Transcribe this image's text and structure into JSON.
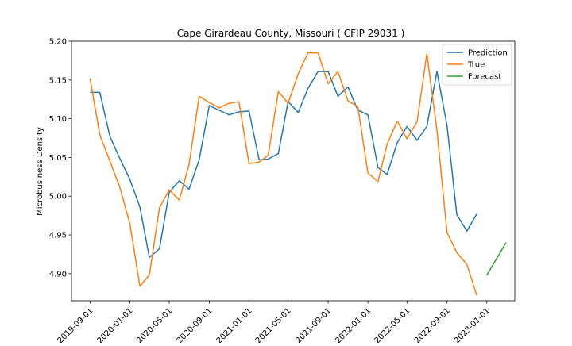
{
  "chart_data": {
    "type": "line",
    "title": "Cape Girardeau County, Missouri ( CFIP 29031 )",
    "xlabel": "",
    "ylabel": "Microbusiness Density",
    "xlim": [
      "2019-07-06",
      "2023-03-28"
    ],
    "ylim": [
      4.865,
      5.2
    ],
    "yticks": [
      4.9,
      4.95,
      5.0,
      5.05,
      5.1,
      5.15,
      5.2
    ],
    "xticks": [
      "2019-09-01",
      "2020-01-01",
      "2020-05-01",
      "2020-09-01",
      "2021-01-01",
      "2021-05-01",
      "2021-09-01",
      "2022-01-01",
      "2022-05-01",
      "2022-09-01",
      "2023-01-01"
    ],
    "grid": false,
    "legend_position": "top-right",
    "series": [
      {
        "name": "Prediction",
        "color": "#1f77b4",
        "x": [
          "2019-09-01",
          "2019-10-01",
          "2019-11-01",
          "2019-12-01",
          "2020-01-01",
          "2020-02-01",
          "2020-03-01",
          "2020-04-01",
          "2020-05-01",
          "2020-06-01",
          "2020-07-01",
          "2020-08-01",
          "2020-09-01",
          "2020-10-01",
          "2020-11-01",
          "2020-12-01",
          "2021-01-01",
          "2021-02-01",
          "2021-03-01",
          "2021-04-01",
          "2021-05-01",
          "2021-06-01",
          "2021-07-01",
          "2021-08-01",
          "2021-09-01",
          "2021-10-01",
          "2021-11-01",
          "2021-12-01",
          "2022-01-01",
          "2022-02-01",
          "2022-03-01",
          "2022-04-01",
          "2022-05-01",
          "2022-06-01",
          "2022-07-01",
          "2022-08-01",
          "2022-09-01",
          "2022-10-01",
          "2022-11-01",
          "2022-12-01"
        ],
        "y": [
          5.134,
          5.134,
          5.077,
          5.049,
          5.022,
          4.986,
          4.921,
          4.932,
          5.005,
          5.02,
          5.009,
          5.047,
          5.117,
          5.111,
          5.105,
          5.109,
          5.11,
          5.047,
          5.048,
          5.055,
          5.122,
          5.108,
          5.139,
          5.161,
          5.161,
          5.129,
          5.141,
          5.111,
          5.105,
          5.037,
          5.028,
          5.069,
          5.09,
          5.072,
          5.09,
          5.161,
          5.091,
          4.976,
          4.955,
          4.977
        ]
      },
      {
        "name": "True",
        "color": "#ff7f0e",
        "x": [
          "2019-09-01",
          "2019-10-01",
          "2019-11-01",
          "2019-12-01",
          "2020-01-01",
          "2020-02-01",
          "2020-03-01",
          "2020-04-01",
          "2020-05-01",
          "2020-06-01",
          "2020-07-01",
          "2020-08-01",
          "2020-09-01",
          "2020-10-01",
          "2020-11-01",
          "2020-12-01",
          "2021-01-01",
          "2021-02-01",
          "2021-03-01",
          "2021-04-01",
          "2021-05-01",
          "2021-06-01",
          "2021-07-01",
          "2021-08-01",
          "2021-09-01",
          "2021-10-01",
          "2021-11-01",
          "2021-12-01",
          "2022-01-01",
          "2022-02-01",
          "2022-03-01",
          "2022-04-01",
          "2022-05-01",
          "2022-06-01",
          "2022-07-01",
          "2022-08-01",
          "2022-09-01",
          "2022-10-01",
          "2022-11-01",
          "2022-12-01"
        ],
        "y": [
          5.152,
          5.079,
          5.045,
          5.012,
          4.965,
          4.884,
          4.898,
          4.985,
          5.008,
          4.995,
          5.041,
          5.129,
          5.121,
          5.114,
          5.12,
          5.122,
          5.042,
          5.044,
          5.053,
          5.135,
          5.12,
          5.158,
          5.185,
          5.185,
          5.145,
          5.161,
          5.123,
          5.116,
          5.03,
          5.019,
          5.067,
          5.097,
          5.074,
          5.096,
          5.184,
          5.085,
          4.953,
          4.927,
          4.912,
          4.872
        ]
      },
      {
        "name": "Forecast",
        "color": "#2ca02c",
        "x": [
          "2023-01-01",
          "2023-02-01",
          "2023-03-01"
        ],
        "y": [
          4.898,
          4.92,
          4.94
        ]
      }
    ]
  }
}
